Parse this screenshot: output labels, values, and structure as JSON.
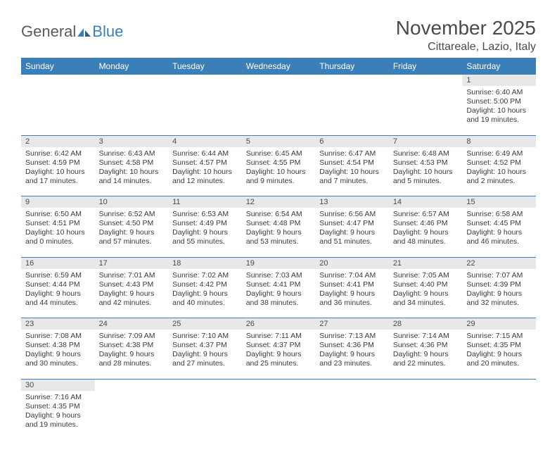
{
  "logo": {
    "text_gray": "General",
    "text_blue": "Blue"
  },
  "title": "November 2025",
  "location": "Cittareale, Lazio, Italy",
  "colors": {
    "header_bg": "#3b7fb8",
    "header_text": "#ffffff",
    "daynum_bg": "#e8e8e8",
    "row_border": "#3b7fb8",
    "text": "#3a3a3a",
    "title_text": "#4a4a4a"
  },
  "weekdays": [
    "Sunday",
    "Monday",
    "Tuesday",
    "Wednesday",
    "Thursday",
    "Friday",
    "Saturday"
  ],
  "weeks": [
    {
      "nums": [
        "",
        "",
        "",
        "",
        "",
        "",
        "1"
      ],
      "cells": [
        null,
        null,
        null,
        null,
        null,
        null,
        {
          "sunrise": "Sunrise: 6:40 AM",
          "sunset": "Sunset: 5:00 PM",
          "dl1": "Daylight: 10 hours",
          "dl2": "and 19 minutes."
        }
      ]
    },
    {
      "nums": [
        "2",
        "3",
        "4",
        "5",
        "6",
        "7",
        "8"
      ],
      "cells": [
        {
          "sunrise": "Sunrise: 6:42 AM",
          "sunset": "Sunset: 4:59 PM",
          "dl1": "Daylight: 10 hours",
          "dl2": "and 17 minutes."
        },
        {
          "sunrise": "Sunrise: 6:43 AM",
          "sunset": "Sunset: 4:58 PM",
          "dl1": "Daylight: 10 hours",
          "dl2": "and 14 minutes."
        },
        {
          "sunrise": "Sunrise: 6:44 AM",
          "sunset": "Sunset: 4:57 PM",
          "dl1": "Daylight: 10 hours",
          "dl2": "and 12 minutes."
        },
        {
          "sunrise": "Sunrise: 6:45 AM",
          "sunset": "Sunset: 4:55 PM",
          "dl1": "Daylight: 10 hours",
          "dl2": "and 9 minutes."
        },
        {
          "sunrise": "Sunrise: 6:47 AM",
          "sunset": "Sunset: 4:54 PM",
          "dl1": "Daylight: 10 hours",
          "dl2": "and 7 minutes."
        },
        {
          "sunrise": "Sunrise: 6:48 AM",
          "sunset": "Sunset: 4:53 PM",
          "dl1": "Daylight: 10 hours",
          "dl2": "and 5 minutes."
        },
        {
          "sunrise": "Sunrise: 6:49 AM",
          "sunset": "Sunset: 4:52 PM",
          "dl1": "Daylight: 10 hours",
          "dl2": "and 2 minutes."
        }
      ]
    },
    {
      "nums": [
        "9",
        "10",
        "11",
        "12",
        "13",
        "14",
        "15"
      ],
      "cells": [
        {
          "sunrise": "Sunrise: 6:50 AM",
          "sunset": "Sunset: 4:51 PM",
          "dl1": "Daylight: 10 hours",
          "dl2": "and 0 minutes."
        },
        {
          "sunrise": "Sunrise: 6:52 AM",
          "sunset": "Sunset: 4:50 PM",
          "dl1": "Daylight: 9 hours",
          "dl2": "and 57 minutes."
        },
        {
          "sunrise": "Sunrise: 6:53 AM",
          "sunset": "Sunset: 4:49 PM",
          "dl1": "Daylight: 9 hours",
          "dl2": "and 55 minutes."
        },
        {
          "sunrise": "Sunrise: 6:54 AM",
          "sunset": "Sunset: 4:48 PM",
          "dl1": "Daylight: 9 hours",
          "dl2": "and 53 minutes."
        },
        {
          "sunrise": "Sunrise: 6:56 AM",
          "sunset": "Sunset: 4:47 PM",
          "dl1": "Daylight: 9 hours",
          "dl2": "and 51 minutes."
        },
        {
          "sunrise": "Sunrise: 6:57 AM",
          "sunset": "Sunset: 4:46 PM",
          "dl1": "Daylight: 9 hours",
          "dl2": "and 48 minutes."
        },
        {
          "sunrise": "Sunrise: 6:58 AM",
          "sunset": "Sunset: 4:45 PM",
          "dl1": "Daylight: 9 hours",
          "dl2": "and 46 minutes."
        }
      ]
    },
    {
      "nums": [
        "16",
        "17",
        "18",
        "19",
        "20",
        "21",
        "22"
      ],
      "cells": [
        {
          "sunrise": "Sunrise: 6:59 AM",
          "sunset": "Sunset: 4:44 PM",
          "dl1": "Daylight: 9 hours",
          "dl2": "and 44 minutes."
        },
        {
          "sunrise": "Sunrise: 7:01 AM",
          "sunset": "Sunset: 4:43 PM",
          "dl1": "Daylight: 9 hours",
          "dl2": "and 42 minutes."
        },
        {
          "sunrise": "Sunrise: 7:02 AM",
          "sunset": "Sunset: 4:42 PM",
          "dl1": "Daylight: 9 hours",
          "dl2": "and 40 minutes."
        },
        {
          "sunrise": "Sunrise: 7:03 AM",
          "sunset": "Sunset: 4:41 PM",
          "dl1": "Daylight: 9 hours",
          "dl2": "and 38 minutes."
        },
        {
          "sunrise": "Sunrise: 7:04 AM",
          "sunset": "Sunset: 4:41 PM",
          "dl1": "Daylight: 9 hours",
          "dl2": "and 36 minutes."
        },
        {
          "sunrise": "Sunrise: 7:05 AM",
          "sunset": "Sunset: 4:40 PM",
          "dl1": "Daylight: 9 hours",
          "dl2": "and 34 minutes."
        },
        {
          "sunrise": "Sunrise: 7:07 AM",
          "sunset": "Sunset: 4:39 PM",
          "dl1": "Daylight: 9 hours",
          "dl2": "and 32 minutes."
        }
      ]
    },
    {
      "nums": [
        "23",
        "24",
        "25",
        "26",
        "27",
        "28",
        "29"
      ],
      "cells": [
        {
          "sunrise": "Sunrise: 7:08 AM",
          "sunset": "Sunset: 4:38 PM",
          "dl1": "Daylight: 9 hours",
          "dl2": "and 30 minutes."
        },
        {
          "sunrise": "Sunrise: 7:09 AM",
          "sunset": "Sunset: 4:38 PM",
          "dl1": "Daylight: 9 hours",
          "dl2": "and 28 minutes."
        },
        {
          "sunrise": "Sunrise: 7:10 AM",
          "sunset": "Sunset: 4:37 PM",
          "dl1": "Daylight: 9 hours",
          "dl2": "and 27 minutes."
        },
        {
          "sunrise": "Sunrise: 7:11 AM",
          "sunset": "Sunset: 4:37 PM",
          "dl1": "Daylight: 9 hours",
          "dl2": "and 25 minutes."
        },
        {
          "sunrise": "Sunrise: 7:13 AM",
          "sunset": "Sunset: 4:36 PM",
          "dl1": "Daylight: 9 hours",
          "dl2": "and 23 minutes."
        },
        {
          "sunrise": "Sunrise: 7:14 AM",
          "sunset": "Sunset: 4:36 PM",
          "dl1": "Daylight: 9 hours",
          "dl2": "and 22 minutes."
        },
        {
          "sunrise": "Sunrise: 7:15 AM",
          "sunset": "Sunset: 4:35 PM",
          "dl1": "Daylight: 9 hours",
          "dl2": "and 20 minutes."
        }
      ]
    },
    {
      "nums": [
        "30",
        "",
        "",
        "",
        "",
        "",
        ""
      ],
      "cells": [
        {
          "sunrise": "Sunrise: 7:16 AM",
          "sunset": "Sunset: 4:35 PM",
          "dl1": "Daylight: 9 hours",
          "dl2": "and 19 minutes."
        },
        null,
        null,
        null,
        null,
        null,
        null
      ]
    }
  ]
}
